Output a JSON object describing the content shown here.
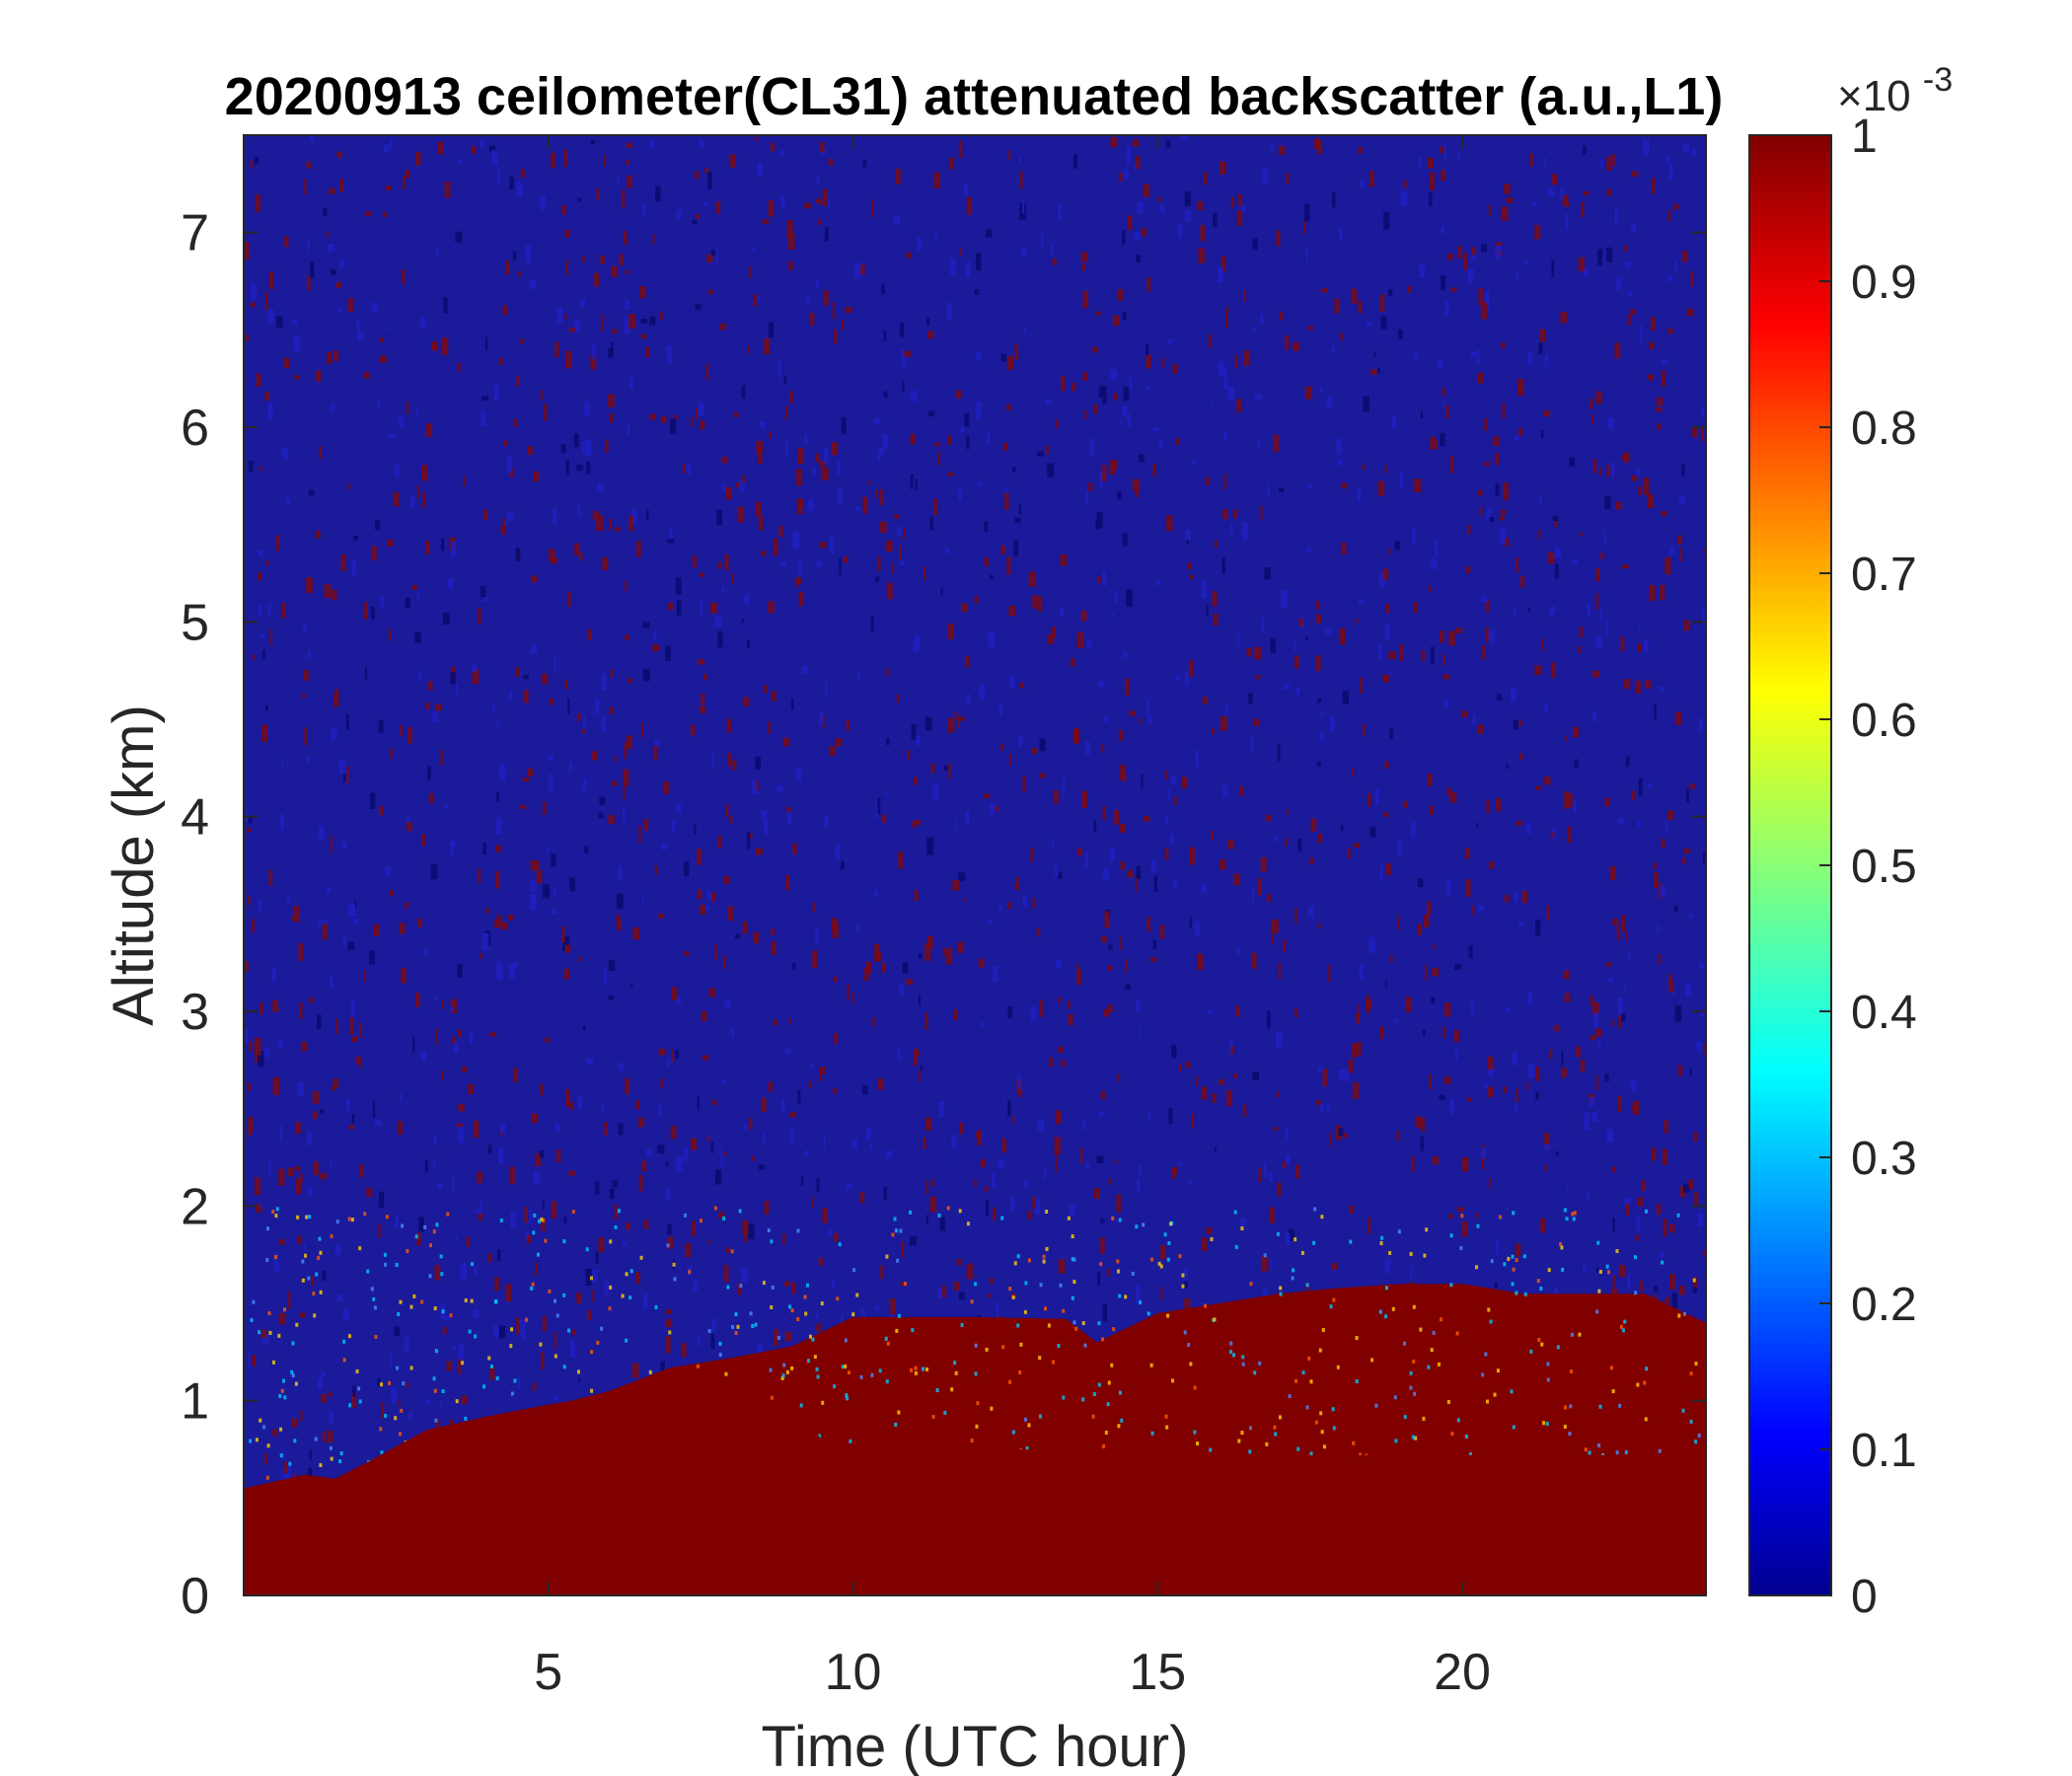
{
  "chart_data": {
    "type": "heatmap",
    "title": "20200913 ceilometer(CL31) attenuated backscatter (a.u.,L1)",
    "xlabel": "Time (UTC hour)",
    "ylabel": "Altitude (km)",
    "xlim": [
      0,
      24
    ],
    "ylim": [
      0,
      7.5
    ],
    "xticks": [
      5,
      10,
      15,
      20
    ],
    "xtick_labels": [
      "5",
      "10",
      "15",
      "20"
    ],
    "yticks": [
      0,
      1,
      2,
      3,
      4,
      5,
      6,
      7
    ],
    "ytick_labels": [
      "0",
      "1",
      "2",
      "3",
      "4",
      "5",
      "6",
      "7"
    ],
    "colormap": "jet",
    "colorbar": {
      "clim": [
        0,
        1
      ],
      "ticks": [
        0,
        0.1,
        0.2,
        0.3,
        0.4,
        0.5,
        0.6,
        0.7,
        0.8,
        0.9,
        1
      ],
      "tick_labels": [
        "0",
        "0.1",
        "0.2",
        "0.3",
        "0.4",
        "0.5",
        "0.6",
        "0.7",
        "0.8",
        "0.9",
        "1"
      ],
      "multiplier_base": "×10",
      "multiplier_exp": "-3"
    },
    "boundary_layer_top_km": {
      "x": [
        0,
        1,
        1.5,
        2,
        3,
        4,
        5,
        6,
        7,
        8,
        9,
        10,
        12,
        13.5,
        14,
        15,
        16,
        17,
        18,
        19,
        20,
        21,
        22,
        23,
        24
      ],
      "y": [
        0.55,
        0.6,
        0.57,
        0.62,
        0.82,
        0.9,
        0.97,
        1.05,
        1.17,
        1.22,
        1.28,
        1.43,
        1.43,
        1.42,
        1.3,
        1.45,
        1.5,
        1.55,
        1.58,
        1.6,
        1.6,
        1.55,
        1.55,
        1.55,
        1.4
      ]
    },
    "dense_layer_top_km": {
      "x": [
        0,
        1,
        1.5,
        2,
        3,
        4,
        5,
        6,
        7,
        8,
        9,
        9.5,
        10,
        11,
        12,
        13,
        14,
        15,
        16,
        17,
        18,
        19,
        20,
        21,
        22,
        23,
        24
      ],
      "y": [
        0.55,
        0.62,
        0.6,
        0.68,
        0.85,
        0.92,
        0.98,
        1.03,
        1.1,
        1.05,
        0.95,
        0.8,
        0.75,
        0.75,
        0.75,
        0.75,
        0.75,
        0.75,
        0.72,
        0.72,
        0.72,
        0.72,
        0.72,
        0.72,
        0.72,
        0.72,
        0.72
      ]
    }
  }
}
